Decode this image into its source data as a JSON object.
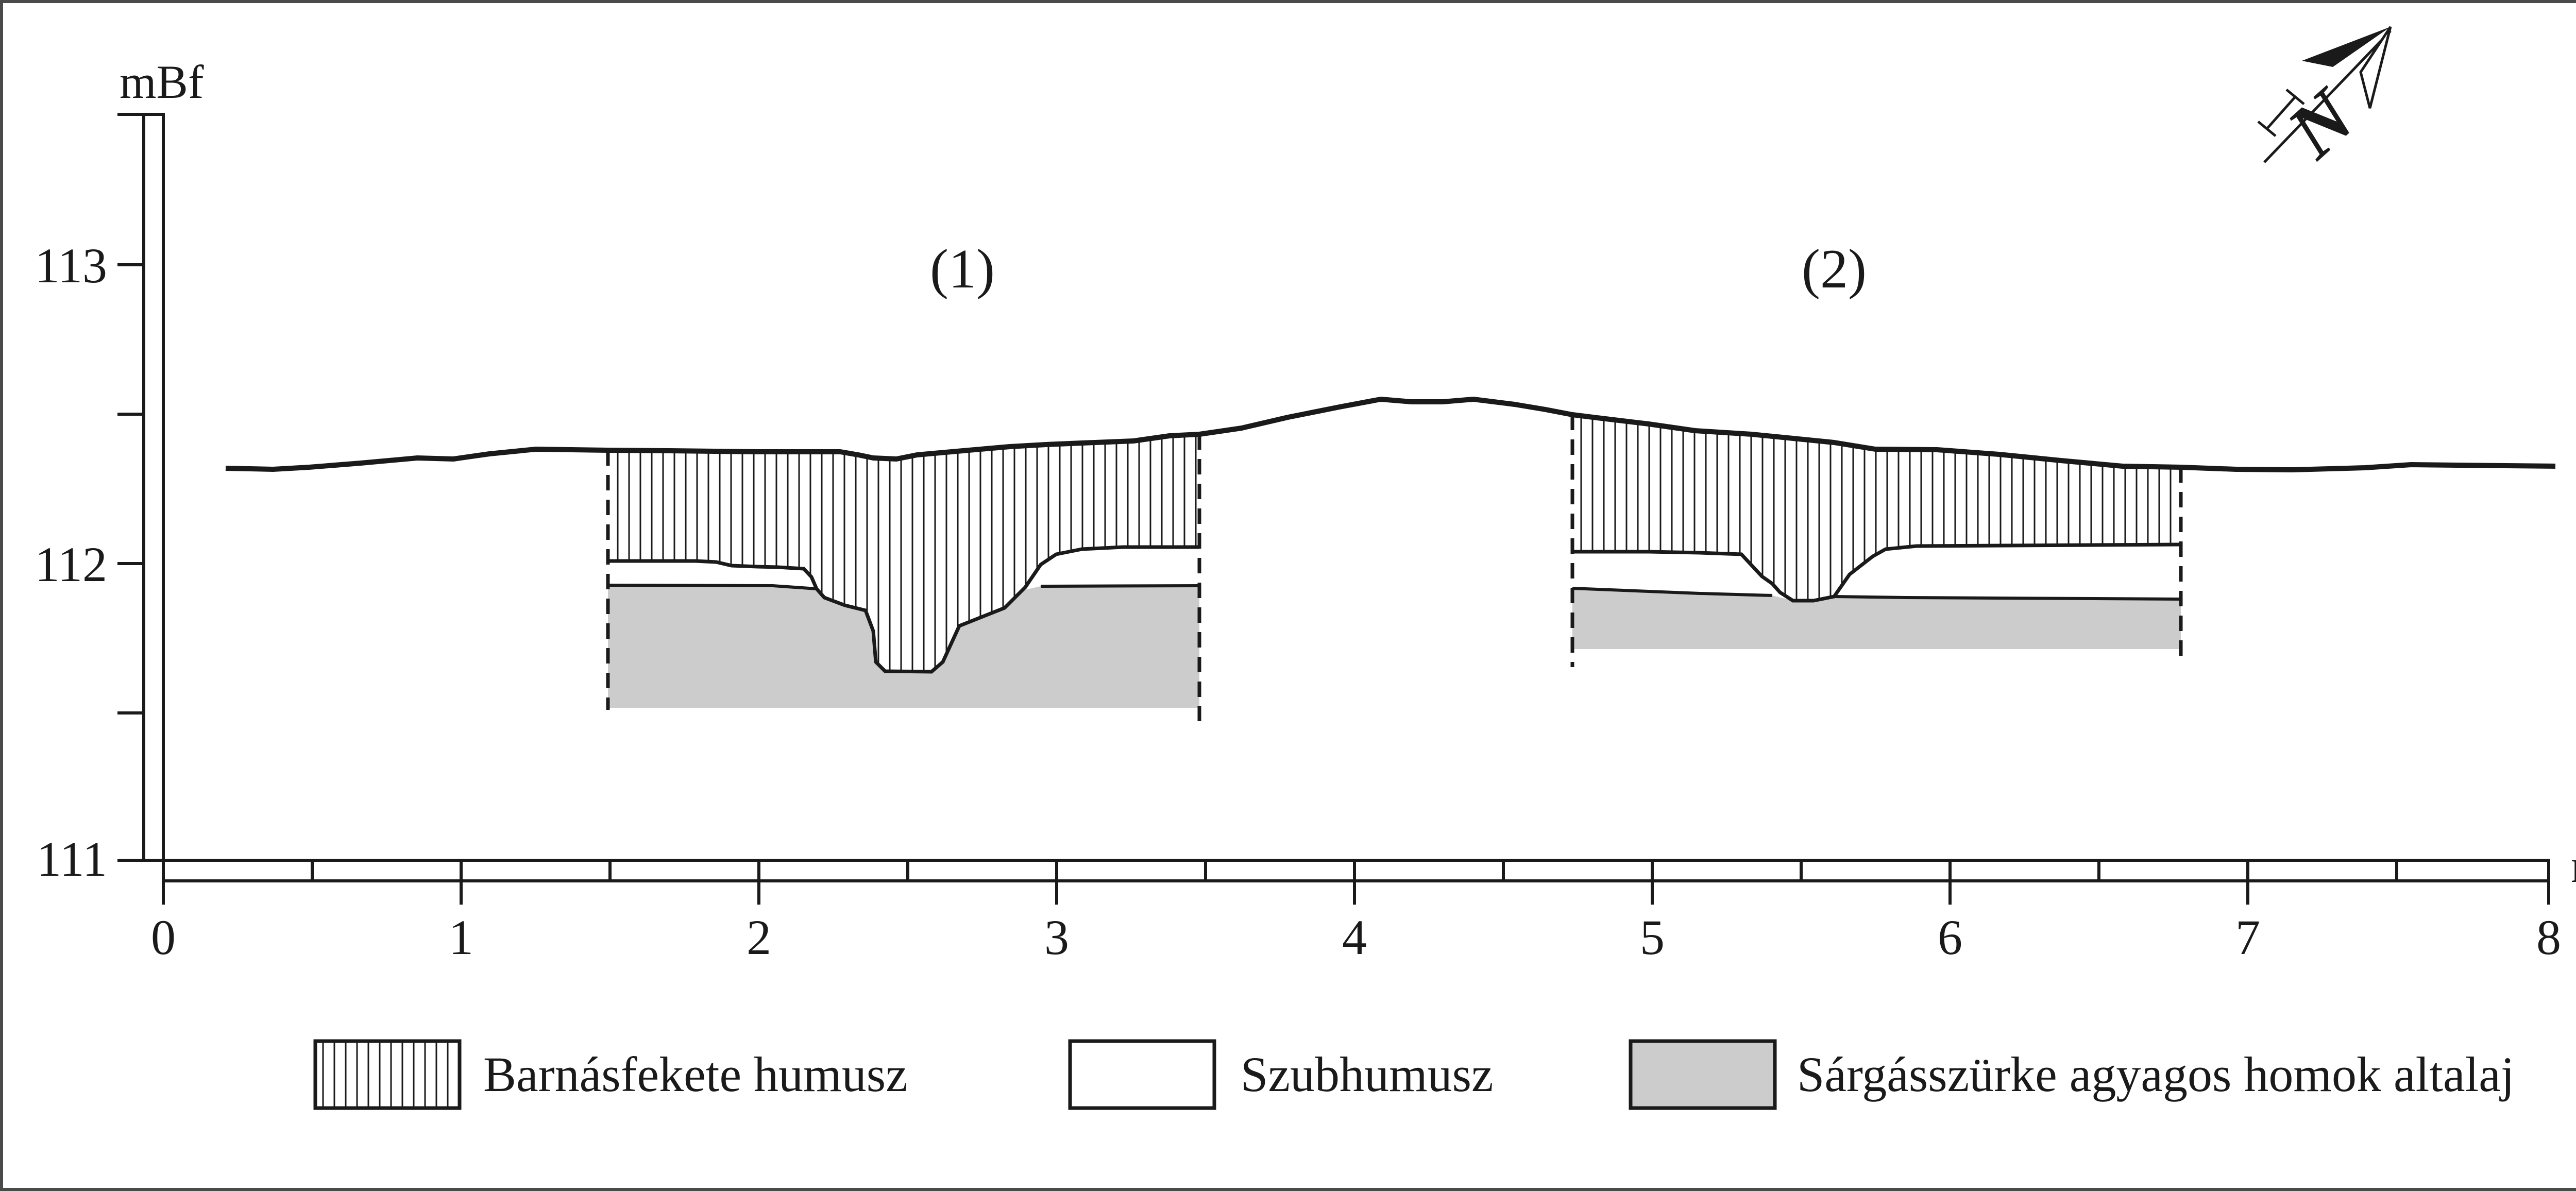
{
  "y_axis": {
    "unit": "mBf",
    "ticks": [
      "113",
      "112",
      "111"
    ],
    "range": [
      111,
      113.5
    ]
  },
  "x_axis": {
    "unit": "m",
    "ticks": [
      "0",
      "1",
      "2",
      "3",
      "4",
      "5",
      "6",
      "7",
      "8"
    ],
    "range": [
      0,
      8
    ]
  },
  "sections": [
    {
      "label": "(1)",
      "x_from": 1.5,
      "x_to": 3.47
    },
    {
      "label": "(2)",
      "x_from": 4.73,
      "x_to": 6.77
    }
  ],
  "north_arrow": {
    "letter": "N",
    "icon": "north-arrow-icon"
  },
  "legend": [
    {
      "label": "Barnásfekete humusz",
      "pattern": "vertical-hatch"
    },
    {
      "label": "Szubhumusz",
      "pattern": "white"
    },
    {
      "label": "Sárgásszürke agyagos homok altalaj",
      "pattern": "grey",
      "color": "#cccccc"
    }
  ],
  "colors": {
    "line": "#1a1a1a",
    "subsoil": "#cccccc",
    "background": "#ffffff"
  },
  "chart_data": {
    "type": "cross-section",
    "xlabel": "m",
    "ylabel": "mBf",
    "xlim": [
      0,
      8
    ],
    "ylim": [
      111,
      113.5
    ],
    "ground_surface": [
      [
        0.21,
        112.32
      ],
      [
        0.37,
        112.32
      ],
      [
        0.59,
        112.34
      ],
      [
        0.85,
        112.36
      ],
      [
        1.05,
        112.36
      ],
      [
        1.27,
        112.39
      ],
      [
        1.5,
        112.38
      ],
      [
        2.0,
        112.37
      ],
      [
        2.25,
        112.37
      ],
      [
        2.35,
        112.35
      ],
      [
        2.43,
        112.34
      ],
      [
        2.6,
        112.36
      ],
      [
        2.8,
        112.38
      ],
      [
        3.0,
        112.4
      ],
      [
        3.2,
        112.41
      ],
      [
        3.47,
        112.44
      ],
      [
        3.7,
        112.48
      ],
      [
        3.9,
        112.52
      ],
      [
        4.07,
        112.55
      ],
      [
        4.2,
        112.54
      ],
      [
        4.4,
        112.55
      ],
      [
        4.6,
        112.53
      ],
      [
        4.73,
        112.51
      ],
      [
        5.0,
        112.47
      ],
      [
        5.3,
        112.43
      ],
      [
        5.6,
        112.41
      ],
      [
        5.85,
        112.38
      ],
      [
        6.2,
        112.37
      ],
      [
        6.5,
        112.33
      ],
      [
        6.77,
        112.31
      ],
      [
        7.0,
        112.31
      ],
      [
        7.2,
        112.31
      ],
      [
        7.6,
        112.33
      ],
      [
        8.03,
        112.32
      ]
    ]
  }
}
